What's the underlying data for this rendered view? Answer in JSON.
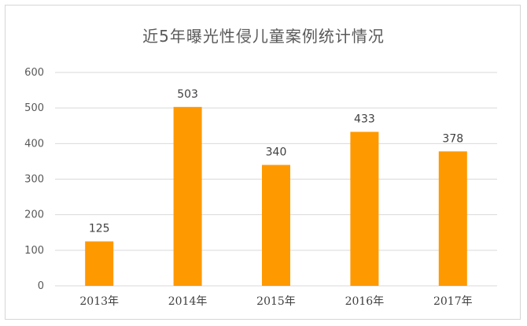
{
  "chart_data": {
    "type": "bar",
    "title": "近5年曝光性侵儿童案例统计情况",
    "categories": [
      "2013年",
      "2014年",
      "2015年",
      "2016年",
      "2017年"
    ],
    "values": [
      125,
      503,
      340,
      433,
      378
    ],
    "ylim": [
      0,
      600
    ],
    "yticks": [
      0,
      100,
      200,
      300,
      400,
      500,
      600
    ],
    "grid": true,
    "legend": "none",
    "bar_color": "#ff9900",
    "grid_color": "#d9d9d9"
  }
}
